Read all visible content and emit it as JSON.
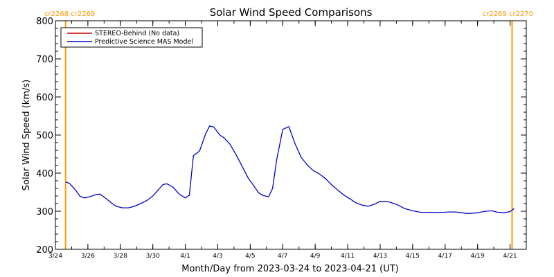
{
  "chart_data": {
    "type": "line",
    "title": "Solar Wind Speed Comparisons",
    "xlabel": "Month/Day from 2023-03-24 to 2023-04-21 (UT)",
    "ylabel": "Solar Wind Speed (km/s)",
    "ylim": [
      200,
      800
    ],
    "yticks": [
      200,
      300,
      400,
      500,
      600,
      700,
      800
    ],
    "xlim": [
      "2023-03-24",
      "2023-04-22"
    ],
    "xticks": [
      {
        "date": "2023-03-24",
        "label": "3/24"
      },
      {
        "date": "2023-03-26",
        "label": "3/26"
      },
      {
        "date": "2023-03-28",
        "label": "3/28"
      },
      {
        "date": "2023-03-30",
        "label": "3/30"
      },
      {
        "date": "2023-04-01",
        "label": "4/1"
      },
      {
        "date": "2023-04-03",
        "label": "4/3"
      },
      {
        "date": "2023-04-05",
        "label": "4/5"
      },
      {
        "date": "2023-04-07",
        "label": "4/7"
      },
      {
        "date": "2023-04-09",
        "label": "4/9"
      },
      {
        "date": "2023-04-11",
        "label": "4/11"
      },
      {
        "date": "2023-04-13",
        "label": "4/13"
      },
      {
        "date": "2023-04-15",
        "label": "4/15"
      },
      {
        "date": "2023-04-17",
        "label": "4/17"
      },
      {
        "date": "2023-04-19",
        "label": "4/19"
      },
      {
        "date": "2023-04-21",
        "label": "4/21"
      }
    ],
    "grid": false,
    "legend_position": "top-left",
    "carrington_markers": [
      {
        "date": "2023-03-24 15:00",
        "label": "cr2268 cr2269",
        "align": "start",
        "color": "#ff9900"
      },
      {
        "date": "2023-04-21 03:00",
        "label": "cr2269 cr2270",
        "align": "end",
        "color": "#ff9900"
      }
    ],
    "series": [
      {
        "name": "STEREO-Behind (No data)",
        "color": "#cc0000",
        "x": [],
        "y": []
      },
      {
        "name": "Predictive Science MAS Model",
        "color": "#0000cc",
        "x": [
          "2023-03-24 15:00",
          "2023-03-24 21:00",
          "2023-03-25 06:00",
          "2023-03-25 12:00",
          "2023-03-25 18:00",
          "2023-03-26 03:00",
          "2023-03-26 12:00",
          "2023-03-26 18:00",
          "2023-03-27 03:00",
          "2023-03-27 12:00",
          "2023-03-27 18:00",
          "2023-03-28 03:00",
          "2023-03-28 12:00",
          "2023-03-28 21:00",
          "2023-03-29 06:00",
          "2023-03-29 15:00",
          "2023-03-30 00:00",
          "2023-03-30 06:00",
          "2023-03-30 15:00",
          "2023-03-30 21:00",
          "2023-03-31 06:00",
          "2023-03-31 15:00",
          "2023-04-01 00:00",
          "2023-04-01 06:00",
          "2023-04-01 12:00",
          "2023-04-01 21:00",
          "2023-04-02 06:00",
          "2023-04-02 12:00",
          "2023-04-02 18:00",
          "2023-04-03 03:00",
          "2023-04-03 09:00",
          "2023-04-03 18:00",
          "2023-04-04 03:00",
          "2023-04-04 12:00",
          "2023-04-04 21:00",
          "2023-04-05 06:00",
          "2023-04-05 12:00",
          "2023-04-05 18:00",
          "2023-04-06 03:00",
          "2023-04-06 09:00",
          "2023-04-06 15:00",
          "2023-04-07 00:00",
          "2023-04-07 09:00",
          "2023-04-07 18:00",
          "2023-04-08 03:00",
          "2023-04-08 12:00",
          "2023-04-08 21:00",
          "2023-04-09 06:00",
          "2023-04-09 15:00",
          "2023-04-10 00:00",
          "2023-04-10 09:00",
          "2023-04-10 18:00",
          "2023-04-11 03:00",
          "2023-04-11 12:00",
          "2023-04-11 21:00",
          "2023-04-12 06:00",
          "2023-04-12 15:00",
          "2023-04-13 00:00",
          "2023-04-13 12:00",
          "2023-04-14 00:00",
          "2023-04-14 12:00",
          "2023-04-15 00:00",
          "2023-04-15 12:00",
          "2023-04-16 00:00",
          "2023-04-16 12:00",
          "2023-04-16 21:00",
          "2023-04-17 06:00",
          "2023-04-17 15:00",
          "2023-04-18 00:00",
          "2023-04-18 09:00",
          "2023-04-18 18:00",
          "2023-04-19 03:00",
          "2023-04-19 12:00",
          "2023-04-19 21:00",
          "2023-04-20 06:00",
          "2023-04-20 15:00",
          "2023-04-21 00:00",
          "2023-04-21 06:00"
        ],
        "y": [
          377,
          373,
          355,
          340,
          335,
          338,
          344,
          345,
          333,
          320,
          313,
          309,
          309,
          313,
          320,
          328,
          340,
          352,
          370,
          372,
          363,
          345,
          335,
          342,
          446,
          458,
          503,
          524,
          521,
          500,
          493,
          476,
          448,
          418,
          387,
          365,
          349,
          342,
          338,
          360,
          435,
          515,
          522,
          478,
          442,
          422,
          407,
          398,
          386,
          370,
          356,
          343,
          333,
          322,
          316,
          313,
          318,
          326,
          325,
          318,
          307,
          301,
          297,
          297,
          297,
          297,
          298,
          298,
          296,
          294,
          295,
          297,
          300,
          301,
          297,
          296,
          299,
          307
        ]
      }
    ]
  }
}
